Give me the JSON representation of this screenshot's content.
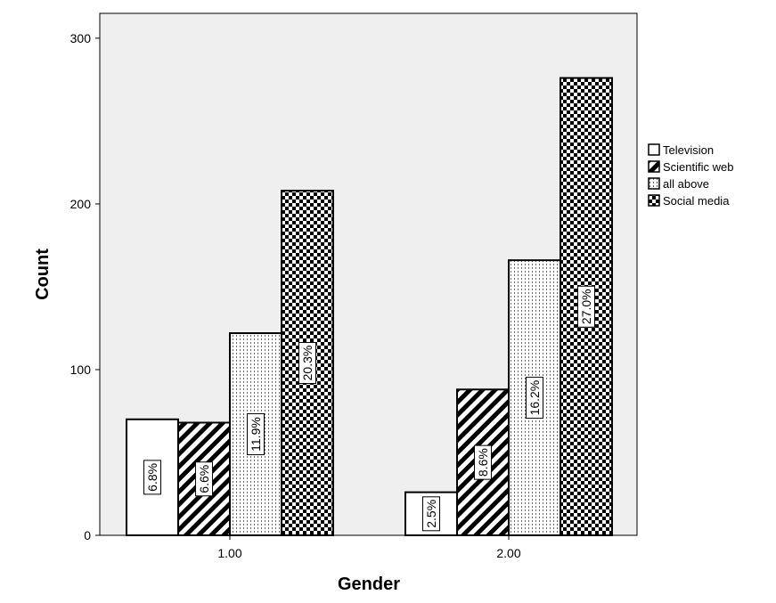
{
  "chart_data": {
    "type": "bar",
    "xlabel": "Gender",
    "ylabel": "Count",
    "categories": [
      "1.00",
      "2.00"
    ],
    "ylim": [
      0,
      315
    ],
    "yticks": [
      0,
      100,
      200,
      300
    ],
    "legend_position": "right",
    "grid": false,
    "plot_background": "#efefef",
    "series": [
      {
        "name": "Television",
        "values": [
          70,
          26
        ],
        "labels": [
          "6.8%",
          "2.5%"
        ],
        "pattern": "solid-white"
      },
      {
        "name": "Scientific web",
        "values": [
          68,
          88
        ],
        "labels": [
          "6.6%",
          "8.6%"
        ],
        "pattern": "diagonal-hatch"
      },
      {
        "name": "all above",
        "values": [
          122,
          166
        ],
        "labels": [
          "11.9%",
          "16.2%"
        ],
        "pattern": "dotted-vertical"
      },
      {
        "name": "Social media",
        "values": [
          208,
          276
        ],
        "labels": [
          "20.3%",
          "27.0%"
        ],
        "pattern": "checkerboard"
      }
    ]
  }
}
